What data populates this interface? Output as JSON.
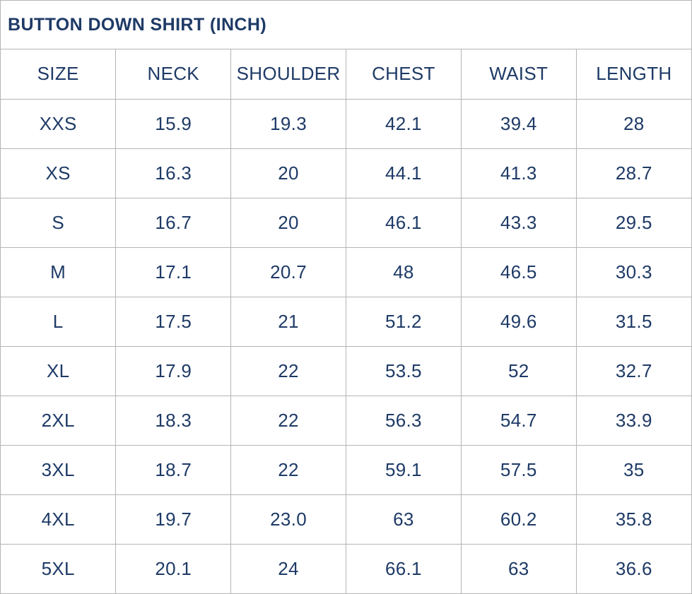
{
  "title": "BUTTON DOWN SHIRT (INCH)",
  "colors": {
    "text": "#1e3a66",
    "grid": "#b5b5b5",
    "background": "#ffffff"
  },
  "table": {
    "columns": [
      "SIZE",
      "NECK",
      "SHOULDER",
      "CHEST",
      "WAIST",
      "LENGTH"
    ],
    "rows": [
      [
        "XXS",
        "15.9",
        "19.3",
        "42.1",
        "39.4",
        "28"
      ],
      [
        "XS",
        "16.3",
        "20",
        "44.1",
        "41.3",
        "28.7"
      ],
      [
        "S",
        "16.7",
        "20",
        "46.1",
        "43.3",
        "29.5"
      ],
      [
        "M",
        "17.1",
        "20.7",
        "48",
        "46.5",
        "30.3"
      ],
      [
        "L",
        "17.5",
        "21",
        "51.2",
        "49.6",
        "31.5"
      ],
      [
        "XL",
        "17.9",
        "22",
        "53.5",
        "52",
        "32.7"
      ],
      [
        "2XL",
        "18.3",
        "22",
        "56.3",
        "54.7",
        "33.9"
      ],
      [
        "3XL",
        "18.7",
        "22",
        "59.1",
        "57.5",
        "35"
      ],
      [
        "4XL",
        "19.7",
        "23.0",
        "63",
        "60.2",
        "35.8"
      ],
      [
        "5XL",
        "20.1",
        "24",
        "66.1",
        "63",
        "36.6"
      ]
    ],
    "unit": "INCH"
  }
}
